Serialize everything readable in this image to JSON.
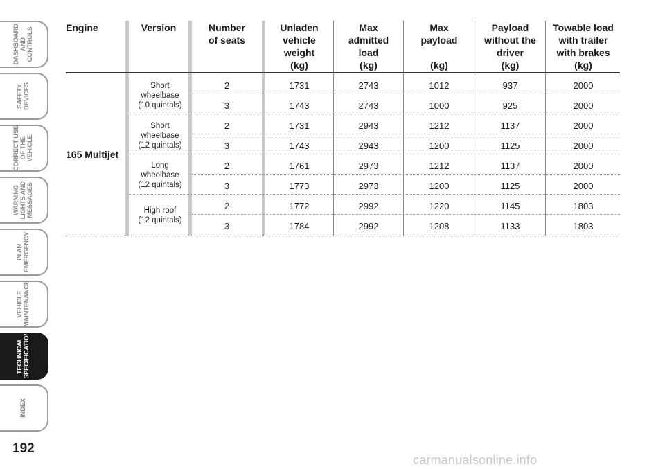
{
  "sidebar": {
    "tabs": [
      {
        "label": "DASHBOARD\nAND CONTROLS",
        "active": false
      },
      {
        "label": "SAFETY\nDEVICES",
        "active": false
      },
      {
        "label": "CORRECT USE\nOF THE VEHICLE",
        "active": false
      },
      {
        "label": "WARNING\nLIGHTS AND\nMESSAGES",
        "active": false
      },
      {
        "label": "IN AN\nEMERGENCY",
        "active": false
      },
      {
        "label": "VEHICLE\nMAINTENANCE",
        "active": false
      },
      {
        "label": "TECHNICAL\nSPECIFICATIONS",
        "active": true
      },
      {
        "label": "INDEX",
        "active": false
      }
    ]
  },
  "page_number": "192",
  "table": {
    "headers": [
      "Engine",
      "Version",
      "Number\nof seats",
      "Unladen\nvehicle\nweight\n(kg)",
      "Max\nadmitted\nload\n(kg)",
      "Max\npayload\n\n(kg)",
      "Payload\nwithout the\ndriver\n(kg)",
      "Towable load\nwith trailer\nwith brakes\n(kg)"
    ],
    "engine": "165 Multijet",
    "versions": [
      "Short\nwheelbase\n(10 quintals)",
      "Short\nwheelbase\n(12 quintals)",
      "Long\nwheelbase\n(12 quintals)",
      "High roof\n(12 quintals)"
    ],
    "rows": [
      [
        "2",
        "1731",
        "2743",
        "1012",
        "937",
        "2000"
      ],
      [
        "3",
        "1743",
        "2743",
        "1000",
        "925",
        "2000"
      ],
      [
        "2",
        "1731",
        "2943",
        "1212",
        "1137",
        "2000"
      ],
      [
        "3",
        "1743",
        "2943",
        "1200",
        "1125",
        "2000"
      ],
      [
        "2",
        "1761",
        "2973",
        "1212",
        "1137",
        "2000"
      ],
      [
        "3",
        "1773",
        "2973",
        "1200",
        "1125",
        "2000"
      ],
      [
        "2",
        "1772",
        "2992",
        "1220",
        "1145",
        "1803"
      ],
      [
        "3",
        "1784",
        "2992",
        "1208",
        "1133",
        "1803"
      ]
    ]
  },
  "watermark": "carmanualsonline.info"
}
